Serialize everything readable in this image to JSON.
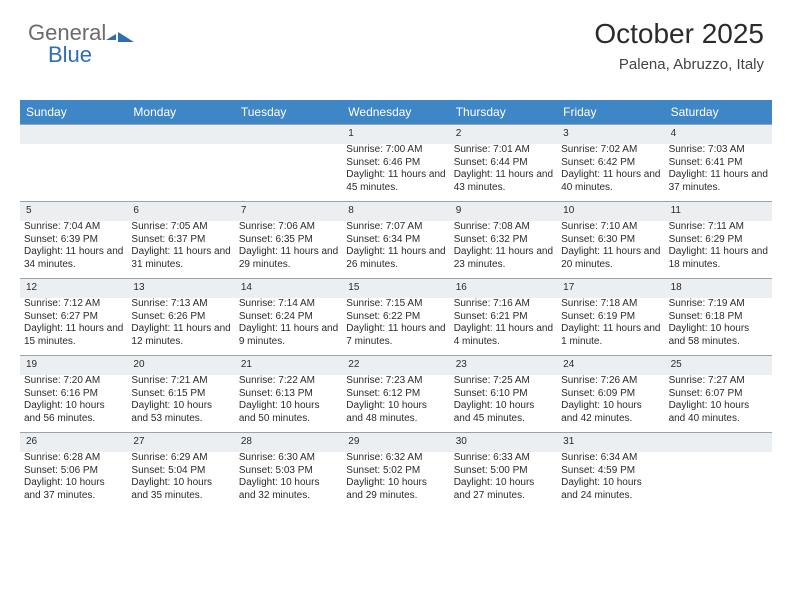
{
  "logo": {
    "part1": "General",
    "part2": "Blue"
  },
  "title": "October 2025",
  "location": "Palena, Abruzzo, Italy",
  "weekdays": [
    "Sunday",
    "Monday",
    "Tuesday",
    "Wednesday",
    "Thursday",
    "Friday",
    "Saturday"
  ],
  "colors": {
    "header_bg": "#3f86c6",
    "header_fg": "#ffffff",
    "daynum_bg": "#eceff2",
    "daynum_border": "#9aa4ad",
    "logo_gray": "#6b6b6b",
    "logo_blue": "#2f6fb0"
  },
  "weeks": [
    [
      null,
      null,
      null,
      {
        "n": "1",
        "sr": "7:00 AM",
        "ss": "6:46 PM",
        "dl": "11 hours and 45 minutes."
      },
      {
        "n": "2",
        "sr": "7:01 AM",
        "ss": "6:44 PM",
        "dl": "11 hours and 43 minutes."
      },
      {
        "n": "3",
        "sr": "7:02 AM",
        "ss": "6:42 PM",
        "dl": "11 hours and 40 minutes."
      },
      {
        "n": "4",
        "sr": "7:03 AM",
        "ss": "6:41 PM",
        "dl": "11 hours and 37 minutes."
      }
    ],
    [
      {
        "n": "5",
        "sr": "7:04 AM",
        "ss": "6:39 PM",
        "dl": "11 hours and 34 minutes."
      },
      {
        "n": "6",
        "sr": "7:05 AM",
        "ss": "6:37 PM",
        "dl": "11 hours and 31 minutes."
      },
      {
        "n": "7",
        "sr": "7:06 AM",
        "ss": "6:35 PM",
        "dl": "11 hours and 29 minutes."
      },
      {
        "n": "8",
        "sr": "7:07 AM",
        "ss": "6:34 PM",
        "dl": "11 hours and 26 minutes."
      },
      {
        "n": "9",
        "sr": "7:08 AM",
        "ss": "6:32 PM",
        "dl": "11 hours and 23 minutes."
      },
      {
        "n": "10",
        "sr": "7:10 AM",
        "ss": "6:30 PM",
        "dl": "11 hours and 20 minutes."
      },
      {
        "n": "11",
        "sr": "7:11 AM",
        "ss": "6:29 PM",
        "dl": "11 hours and 18 minutes."
      }
    ],
    [
      {
        "n": "12",
        "sr": "7:12 AM",
        "ss": "6:27 PM",
        "dl": "11 hours and 15 minutes."
      },
      {
        "n": "13",
        "sr": "7:13 AM",
        "ss": "6:26 PM",
        "dl": "11 hours and 12 minutes."
      },
      {
        "n": "14",
        "sr": "7:14 AM",
        "ss": "6:24 PM",
        "dl": "11 hours and 9 minutes."
      },
      {
        "n": "15",
        "sr": "7:15 AM",
        "ss": "6:22 PM",
        "dl": "11 hours and 7 minutes."
      },
      {
        "n": "16",
        "sr": "7:16 AM",
        "ss": "6:21 PM",
        "dl": "11 hours and 4 minutes."
      },
      {
        "n": "17",
        "sr": "7:18 AM",
        "ss": "6:19 PM",
        "dl": "11 hours and 1 minute."
      },
      {
        "n": "18",
        "sr": "7:19 AM",
        "ss": "6:18 PM",
        "dl": "10 hours and 58 minutes."
      }
    ],
    [
      {
        "n": "19",
        "sr": "7:20 AM",
        "ss": "6:16 PM",
        "dl": "10 hours and 56 minutes."
      },
      {
        "n": "20",
        "sr": "7:21 AM",
        "ss": "6:15 PM",
        "dl": "10 hours and 53 minutes."
      },
      {
        "n": "21",
        "sr": "7:22 AM",
        "ss": "6:13 PM",
        "dl": "10 hours and 50 minutes."
      },
      {
        "n": "22",
        "sr": "7:23 AM",
        "ss": "6:12 PM",
        "dl": "10 hours and 48 minutes."
      },
      {
        "n": "23",
        "sr": "7:25 AM",
        "ss": "6:10 PM",
        "dl": "10 hours and 45 minutes."
      },
      {
        "n": "24",
        "sr": "7:26 AM",
        "ss": "6:09 PM",
        "dl": "10 hours and 42 minutes."
      },
      {
        "n": "25",
        "sr": "7:27 AM",
        "ss": "6:07 PM",
        "dl": "10 hours and 40 minutes."
      }
    ],
    [
      {
        "n": "26",
        "sr": "6:28 AM",
        "ss": "5:06 PM",
        "dl": "10 hours and 37 minutes."
      },
      {
        "n": "27",
        "sr": "6:29 AM",
        "ss": "5:04 PM",
        "dl": "10 hours and 35 minutes."
      },
      {
        "n": "28",
        "sr": "6:30 AM",
        "ss": "5:03 PM",
        "dl": "10 hours and 32 minutes."
      },
      {
        "n": "29",
        "sr": "6:32 AM",
        "ss": "5:02 PM",
        "dl": "10 hours and 29 minutes."
      },
      {
        "n": "30",
        "sr": "6:33 AM",
        "ss": "5:00 PM",
        "dl": "10 hours and 27 minutes."
      },
      {
        "n": "31",
        "sr": "6:34 AM",
        "ss": "4:59 PM",
        "dl": "10 hours and 24 minutes."
      },
      null
    ]
  ],
  "labels": {
    "sunrise": "Sunrise:",
    "sunset": "Sunset:",
    "daylight": "Daylight:"
  }
}
